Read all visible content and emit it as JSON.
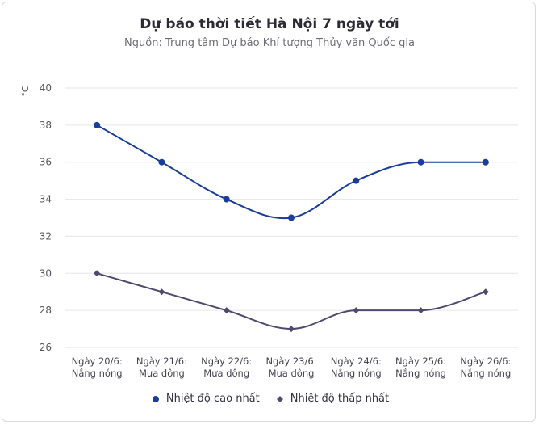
{
  "chart_data": {
    "type": "line",
    "title": "Dự báo thời tiết Hà Nội 7 ngày tới",
    "subtitle": "Nguồn: Trung tâm Dự báo Khí tượng Thủy văn Quốc gia",
    "ylabel": "°C",
    "ylim": [
      26,
      40
    ],
    "yticks": [
      "40",
      "38",
      "36",
      "34",
      "32",
      "30",
      "28",
      "26"
    ],
    "grid": true,
    "legend_position": "bottom",
    "categories": [
      [
        "Ngày 20/6:",
        "Nắng nóng"
      ],
      [
        "Ngày 21/6:",
        "Mưa dông"
      ],
      [
        "Ngày 22/6:",
        "Mưa dông"
      ],
      [
        "Ngày 23/6:",
        "Mưa dông"
      ],
      [
        "Ngày 24/6:",
        "Nắng nóng"
      ],
      [
        "Ngày 25/6:",
        "Nắng nóng"
      ],
      [
        "Ngày 26/6:",
        "Nắng nóng"
      ]
    ],
    "series": [
      {
        "name": "Nhiệt độ cao nhất",
        "values": [
          38,
          36,
          34,
          33,
          35,
          36,
          36
        ],
        "color": "#1a3d9a",
        "marker": "circle"
      },
      {
        "name": "Nhiệt độ thấp nhất",
        "values": [
          30,
          29,
          28,
          27,
          28,
          28,
          29
        ],
        "color": "#4d4a6e",
        "marker": "diamond"
      }
    ]
  }
}
